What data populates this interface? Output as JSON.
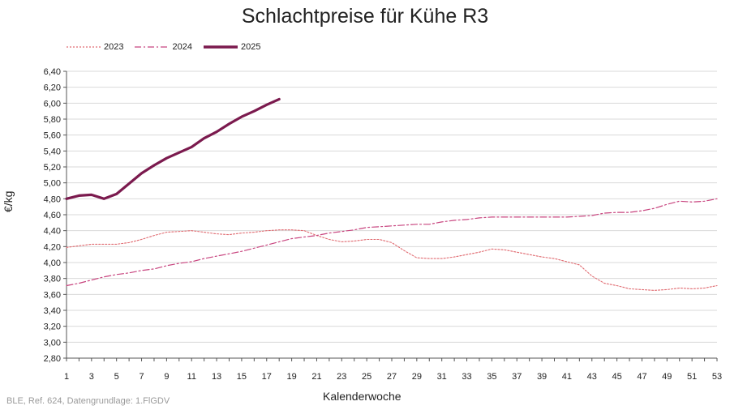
{
  "chart_data": {
    "type": "line",
    "title": "Schlachtpreise für Kühe R3",
    "xlabel": "Kalenderwoche",
    "ylabel": "€/kg",
    "source": "BLE, Ref. 624, Datengrundlage: 1.FlGDV",
    "xlim": [
      1,
      53
    ],
    "ylim": [
      2.8,
      6.4
    ],
    "x_ticks": [
      1,
      3,
      5,
      7,
      9,
      11,
      13,
      15,
      17,
      19,
      21,
      23,
      25,
      27,
      29,
      31,
      33,
      35,
      37,
      39,
      41,
      43,
      45,
      47,
      49,
      51,
      53
    ],
    "y_ticks": [
      "2,80",
      "3,00",
      "3,20",
      "3,40",
      "3,60",
      "3,80",
      "4,00",
      "4,20",
      "4,40",
      "4,60",
      "4,80",
      "5,00",
      "5,20",
      "5,40",
      "5,60",
      "5,80",
      "6,00",
      "6,20",
      "6,40"
    ],
    "y_tick_values": [
      2.8,
      3.0,
      3.2,
      3.4,
      3.6,
      3.8,
      4.0,
      4.2,
      4.4,
      4.6,
      4.8,
      5.0,
      5.2,
      5.4,
      5.6,
      5.8,
      6.0,
      6.2,
      6.4
    ],
    "grid": true,
    "legend_position": "top-left",
    "series": [
      {
        "name": "2023",
        "color": "#e06a70",
        "style": "dotted",
        "x": [
          1,
          2,
          3,
          4,
          5,
          6,
          7,
          8,
          9,
          10,
          11,
          12,
          13,
          14,
          15,
          16,
          17,
          18,
          19,
          20,
          21,
          22,
          23,
          24,
          25,
          26,
          27,
          28,
          29,
          30,
          31,
          32,
          33,
          34,
          35,
          36,
          37,
          38,
          39,
          40,
          41,
          42,
          43,
          44,
          45,
          46,
          47,
          48,
          49,
          50,
          51,
          52,
          53
        ],
        "values": [
          4.19,
          4.21,
          4.23,
          4.23,
          4.23,
          4.25,
          4.29,
          4.34,
          4.38,
          4.39,
          4.4,
          4.38,
          4.36,
          4.35,
          4.37,
          4.38,
          4.4,
          4.41,
          4.41,
          4.4,
          4.34,
          4.29,
          4.26,
          4.27,
          4.29,
          4.29,
          4.25,
          4.15,
          4.06,
          4.05,
          4.05,
          4.07,
          4.1,
          4.13,
          4.17,
          4.16,
          4.13,
          4.1,
          4.07,
          4.05,
          4.01,
          3.97,
          3.83,
          3.74,
          3.71,
          3.67,
          3.66,
          3.65,
          3.66,
          3.68,
          3.67,
          3.68,
          3.71
        ]
      },
      {
        "name": "2024",
        "color": "#c8457f",
        "style": "dashdot",
        "x": [
          1,
          2,
          3,
          4,
          5,
          6,
          7,
          8,
          9,
          10,
          11,
          12,
          13,
          14,
          15,
          16,
          17,
          18,
          19,
          20,
          21,
          22,
          23,
          24,
          25,
          26,
          27,
          28,
          29,
          30,
          31,
          32,
          33,
          34,
          35,
          36,
          37,
          38,
          39,
          40,
          41,
          42,
          43,
          44,
          45,
          46,
          47,
          48,
          49,
          50,
          51,
          52,
          53
        ],
        "values": [
          3.71,
          3.74,
          3.78,
          3.82,
          3.85,
          3.87,
          3.9,
          3.92,
          3.96,
          3.99,
          4.01,
          4.05,
          4.08,
          4.11,
          4.14,
          4.18,
          4.22,
          4.26,
          4.3,
          4.32,
          4.34,
          4.37,
          4.39,
          4.41,
          4.44,
          4.45,
          4.46,
          4.47,
          4.48,
          4.48,
          4.51,
          4.53,
          4.54,
          4.56,
          4.57,
          4.57,
          4.57,
          4.57,
          4.57,
          4.57,
          4.57,
          4.58,
          4.59,
          4.62,
          4.63,
          4.63,
          4.65,
          4.68,
          4.73,
          4.77,
          4.76,
          4.77,
          4.8
        ]
      },
      {
        "name": "2025",
        "color": "#7b1a4e",
        "style": "solid",
        "x": [
          1,
          2,
          3,
          4,
          5,
          6,
          7,
          8,
          9,
          10,
          11,
          12,
          13,
          14,
          15,
          16,
          17,
          18
        ],
        "values": [
          4.8,
          4.84,
          4.85,
          4.8,
          4.86,
          4.99,
          5.12,
          5.22,
          5.31,
          5.38,
          5.45,
          5.56,
          5.64,
          5.74,
          5.83,
          5.9,
          5.98,
          6.05
        ]
      }
    ]
  }
}
